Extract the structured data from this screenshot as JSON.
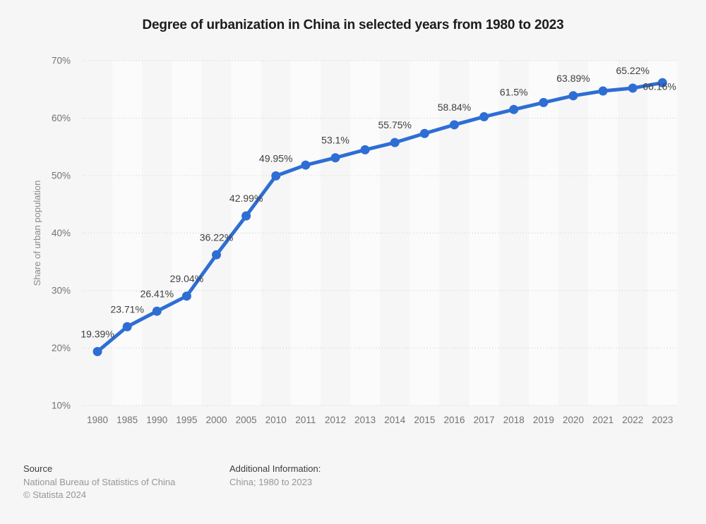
{
  "title": "Degree of urbanization in China in selected years from 1980 to 2023",
  "chart_data": {
    "type": "line",
    "title": "Degree of urbanization in China in selected years from 1980 to 2023",
    "x": [
      "1980",
      "1985",
      "1990",
      "1995",
      "2000",
      "2005",
      "2010",
      "2011",
      "2012",
      "2013",
      "2014",
      "2015",
      "2016",
      "2017",
      "2018",
      "2019",
      "2020",
      "2021",
      "2022",
      "2023"
    ],
    "values": [
      19.39,
      23.71,
      26.41,
      29.04,
      36.22,
      42.99,
      49.95,
      51.83,
      53.1,
      54.49,
      55.75,
      57.33,
      58.84,
      60.24,
      61.5,
      62.71,
      63.89,
      64.72,
      65.22,
      66.16
    ],
    "point_labels": [
      "19.39%",
      "23.71%",
      "26.41%",
      "29.04%",
      "36.22%",
      "42.99%",
      "49.95%",
      null,
      "53.1%",
      null,
      "55.75%",
      null,
      "58.84%",
      null,
      "61.5%",
      null,
      "63.89%",
      null,
      "65.22%",
      "66.16%"
    ],
    "xlabel": "",
    "ylabel": "Share of urban population",
    "ytick_labels": [
      "10%",
      "20%",
      "30%",
      "40%",
      "50%",
      "60%",
      "70%"
    ],
    "ylim": [
      10,
      70
    ],
    "grid": "horizontal-dotted",
    "legend": "none",
    "line_color": "#2e6ed4",
    "point_label_color": "#3f3f3f",
    "axis_text_color": "#737373",
    "grid_color": "#c9c9c9",
    "stripe_color": "#fbfbfb"
  },
  "footer": {
    "source_heading": "Source",
    "source_name": "National Bureau of Statistics of China",
    "copyright": "© Statista 2024",
    "additional_heading": "Additional Information:",
    "additional_text": "China; 1980 to 2023"
  }
}
